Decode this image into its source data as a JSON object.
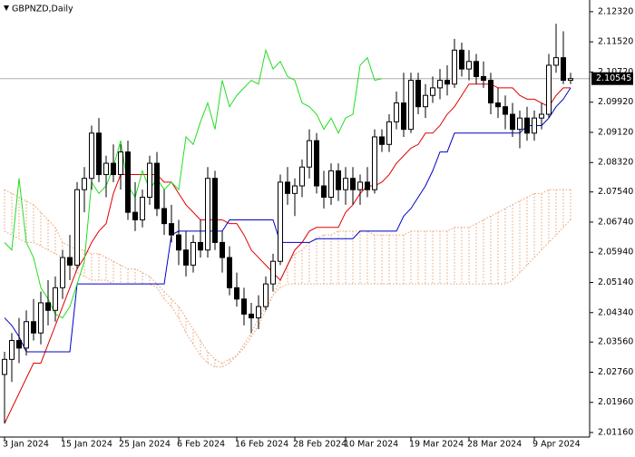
{
  "chart_data": {
    "type": "candlestick",
    "title": "GBPNZD,Daily",
    "categories": [
      "3 Jan 2024",
      null,
      null,
      null,
      null,
      null,
      null,
      null,
      "15 Jan 2024",
      null,
      null,
      null,
      null,
      null,
      null,
      null,
      "25 Jan 2024",
      null,
      null,
      null,
      null,
      null,
      null,
      null,
      "6 Feb 2024",
      null,
      null,
      null,
      null,
      null,
      null,
      null,
      "16 Feb 2024",
      null,
      null,
      null,
      null,
      null,
      null,
      null,
      "28 Feb 2024",
      null,
      null,
      null,
      null,
      null,
      null,
      "10 Mar 2024",
      null,
      null,
      null,
      null,
      null,
      null,
      null,
      null,
      "19 Mar 2024",
      null,
      null,
      null,
      null,
      null,
      null,
      null,
      "28 Mar 2024",
      null,
      null,
      null,
      null,
      null,
      null,
      null,
      null,
      "9 Apr 2024",
      null,
      null,
      null,
      null,
      null
    ],
    "open": [
      2.027,
      2.031,
      2.036,
      2.034,
      2.041,
      2.038,
      2.046,
      2.044,
      2.05,
      2.058,
      2.056,
      2.076,
      2.079,
      2.091,
      2.08,
      2.083,
      2.08,
      2.086,
      2.07,
      2.068,
      2.074,
      2.083,
      2.071,
      2.067,
      2.064,
      2.06,
      2.056,
      2.062,
      2.06,
      2.079,
      2.062,
      2.058,
      2.05,
      2.047,
      2.043,
      2.042,
      2.045,
      2.051,
      2.057,
      2.078,
      2.075,
      2.077,
      2.082,
      2.089,
      2.077,
      2.074,
      2.081,
      2.076,
      2.079,
      2.076,
      2.078,
      2.076,
      2.09,
      2.088,
      2.094,
      2.099,
      2.092,
      2.105,
      2.098,
      2.101,
      2.103,
      2.105,
      2.104,
      2.113,
      2.108,
      2.11,
      2.106,
      2.105,
      2.099,
      2.098,
      2.096,
      2.092,
      2.095,
      2.091,
      2.095,
      2.096,
      2.109,
      2.111,
      2.105
    ],
    "high": [
      2.033,
      2.038,
      2.042,
      2.044,
      2.047,
      2.049,
      2.052,
      2.053,
      2.06,
      2.064,
      2.078,
      2.082,
      2.093,
      2.095,
      2.085,
      2.088,
      2.088,
      2.089,
      2.078,
      2.076,
      2.085,
      2.086,
      2.076,
      2.072,
      2.068,
      2.065,
      2.064,
      2.068,
      2.082,
      2.081,
      2.065,
      2.061,
      2.054,
      2.05,
      2.046,
      2.048,
      2.053,
      2.059,
      2.08,
      2.082,
      2.079,
      2.084,
      2.092,
      2.091,
      2.081,
      2.083,
      2.083,
      2.082,
      2.082,
      2.08,
      2.082,
      2.092,
      2.092,
      2.096,
      2.102,
      2.107,
      2.107,
      2.107,
      2.104,
      2.106,
      2.108,
      2.109,
      2.116,
      2.115,
      2.113,
      2.112,
      2.11,
      2.107,
      2.103,
      2.101,
      2.099,
      2.097,
      2.098,
      2.097,
      2.099,
      2.112,
      2.12,
      2.118,
      2.107
    ],
    "low": [
      2.014,
      2.025,
      2.03,
      2.032,
      2.036,
      2.035,
      2.04,
      2.041,
      2.047,
      2.052,
      2.055,
      2.07,
      2.076,
      2.078,
      2.074,
      2.078,
      2.076,
      2.068,
      2.065,
      2.066,
      2.072,
      2.069,
      2.064,
      2.062,
      2.056,
      2.053,
      2.054,
      2.058,
      2.058,
      2.06,
      2.054,
      2.048,
      2.045,
      2.04,
      2.038,
      2.039,
      2.044,
      2.049,
      2.056,
      2.072,
      2.069,
      2.074,
      2.079,
      2.075,
      2.071,
      2.072,
      2.073,
      2.072,
      2.072,
      2.072,
      2.074,
      2.075,
      2.086,
      2.086,
      2.092,
      2.09,
      2.091,
      2.096,
      2.095,
      2.099,
      2.1,
      2.101,
      2.103,
      2.106,
      2.105,
      2.104,
      2.103,
      2.096,
      2.095,
      2.092,
      2.09,
      2.087,
      2.089,
      2.089,
      2.092,
      2.095,
      2.107,
      2.104,
      2.104
    ],
    "close": [
      2.031,
      2.036,
      2.034,
      2.041,
      2.038,
      2.046,
      2.044,
      2.05,
      2.058,
      2.056,
      2.076,
      2.079,
      2.091,
      2.08,
      2.083,
      2.08,
      2.086,
      2.07,
      2.068,
      2.074,
      2.083,
      2.071,
      2.067,
      2.064,
      2.06,
      2.056,
      2.062,
      2.06,
      2.079,
      2.062,
      2.058,
      2.05,
      2.047,
      2.043,
      2.042,
      2.045,
      2.051,
      2.057,
      2.078,
      2.075,
      2.077,
      2.082,
      2.089,
      2.077,
      2.074,
      2.081,
      2.076,
      2.079,
      2.076,
      2.078,
      2.076,
      2.09,
      2.088,
      2.094,
      2.099,
      2.092,
      2.105,
      2.098,
      2.101,
      2.103,
      2.105,
      2.104,
      2.113,
      2.108,
      2.11,
      2.106,
      2.105,
      2.099,
      2.098,
      2.096,
      2.092,
      2.095,
      2.091,
      2.095,
      2.096,
      2.109,
      2.111,
      2.105,
      2.10545
    ],
    "up_color": "#ffffff",
    "down_color": "#000000",
    "lines": [
      {
        "color": "#e00000",
        "values": [
          2.014,
          2.018,
          2.022,
          2.026,
          2.03,
          2.03,
          2.035,
          2.04,
          2.045,
          2.05,
          2.055,
          2.058,
          2.062,
          2.065,
          2.067,
          2.075,
          2.08,
          2.08,
          2.08,
          2.08,
          2.08,
          2.08,
          2.078,
          2.078,
          2.075,
          2.072,
          2.07,
          2.068,
          2.068,
          2.068,
          2.068,
          2.067,
          2.067,
          2.064,
          2.06,
          2.058,
          2.056,
          2.054,
          2.052,
          2.056,
          2.06,
          2.062,
          2.065,
          2.066,
          2.066,
          2.066,
          2.066,
          2.07,
          2.072,
          2.075,
          2.077,
          2.077,
          2.078,
          2.08,
          2.083,
          2.085,
          2.087,
          2.088,
          2.091,
          2.091,
          2.093,
          2.096,
          2.098,
          2.101,
          2.104,
          2.104,
          2.104,
          2.104,
          2.103,
          2.103,
          2.103,
          2.101,
          2.1,
          2.1,
          2.099,
          2.098,
          2.101,
          2.103,
          2.103
        ]
      },
      {
        "color": "#0000c8",
        "values": [
          2.042,
          2.04,
          2.037,
          2.033,
          2.033,
          2.033,
          2.033,
          2.033,
          2.033,
          2.033,
          2.051,
          2.051,
          2.051,
          2.051,
          2.051,
          2.051,
          2.051,
          2.051,
          2.051,
          2.051,
          2.051,
          2.051,
          2.051,
          2.064,
          2.065,
          2.065,
          2.065,
          2.065,
          2.065,
          2.065,
          2.065,
          2.068,
          2.068,
          2.068,
          2.068,
          2.068,
          2.068,
          2.068,
          2.062,
          2.062,
          2.062,
          2.062,
          2.062,
          2.063,
          2.063,
          2.063,
          2.063,
          2.063,
          2.063,
          2.065,
          2.065,
          2.065,
          2.065,
          2.065,
          2.065,
          2.069,
          2.071,
          2.074,
          2.077,
          2.081,
          2.086,
          2.086,
          2.091,
          2.091,
          2.091,
          2.091,
          2.091,
          2.091,
          2.091,
          2.091,
          2.091,
          2.091,
          2.093,
          2.093,
          2.093,
          2.095,
          2.098,
          2.1,
          2.103
        ]
      },
      {
        "color": "#22dd22",
        "values": [
          2.062,
          2.06,
          2.079,
          2.062,
          2.058,
          2.05,
          2.047,
          2.043,
          2.042,
          2.045,
          2.051,
          2.057,
          2.078,
          2.075,
          2.077,
          2.082,
          2.089,
          2.077,
          2.074,
          2.081,
          2.076,
          2.079,
          2.076,
          2.078,
          2.076,
          2.09,
          2.088,
          2.094,
          2.099,
          2.092,
          2.105,
          2.098,
          2.101,
          2.103,
          2.105,
          2.104,
          2.113,
          2.108,
          2.11,
          2.106,
          2.105,
          2.099,
          2.098,
          2.096,
          2.092,
          2.095,
          2.091,
          2.095,
          2.096,
          2.109,
          2.111,
          2.105,
          2.10545,
          null,
          null,
          null,
          null,
          null,
          null,
          null,
          null,
          null,
          null,
          null,
          null,
          null,
          null,
          null,
          null,
          null,
          null,
          null,
          null,
          null,
          null,
          null,
          null
        ]
      }
    ],
    "cloud": {
      "color": "#e8a070",
      "span_a": [
        2.076,
        2.075,
        2.074,
        2.073,
        2.072,
        2.07,
        2.068,
        2.066,
        2.062,
        2.061,
        2.06,
        2.06,
        2.059,
        2.059,
        2.058,
        2.057,
        2.056,
        2.055,
        2.055,
        2.054,
        2.053,
        2.051,
        2.049,
        2.047,
        2.045,
        2.042,
        2.039,
        2.036,
        2.033,
        2.031,
        2.03,
        2.031,
        2.032,
        2.034,
        2.037,
        2.04,
        2.044,
        2.048,
        2.052,
        2.056,
        2.059,
        2.06,
        2.062,
        2.063,
        2.064,
        2.064,
        2.065,
        2.065,
        2.065,
        2.065,
        2.065,
        2.064,
        2.064,
        2.064,
        2.064,
        2.064,
        2.065,
        2.065,
        2.065,
        2.065,
        2.065,
        2.065,
        2.066,
        2.066,
        2.066,
        2.067,
        2.068,
        2.069,
        2.07,
        2.071,
        2.072,
        2.073,
        2.074,
        2.075,
        2.075,
        2.076,
        2.076,
        2.076,
        2.076
      ],
      "span_b": [
        2.065,
        2.064,
        2.063,
        2.062,
        2.062,
        2.061,
        2.06,
        2.059,
        2.058,
        2.056,
        2.054,
        2.053,
        2.052,
        2.052,
        2.052,
        2.051,
        2.051,
        2.051,
        2.051,
        2.051,
        2.051,
        2.05,
        2.047,
        2.045,
        2.042,
        2.038,
        2.035,
        2.032,
        2.03,
        2.029,
        2.029,
        2.03,
        2.032,
        2.035,
        2.038,
        2.042,
        2.045,
        2.048,
        2.05,
        2.051,
        2.051,
        2.051,
        2.051,
        2.051,
        2.051,
        2.051,
        2.051,
        2.051,
        2.051,
        2.051,
        2.051,
        2.051,
        2.051,
        2.051,
        2.051,
        2.051,
        2.051,
        2.051,
        2.051,
        2.051,
        2.051,
        2.051,
        2.051,
        2.051,
        2.051,
        2.051,
        2.051,
        2.051,
        2.051,
        2.051,
        2.052,
        2.054,
        2.056,
        2.058,
        2.06,
        2.062,
        2.064,
        2.066,
        2.068
      ]
    },
    "last_price": 2.10545,
    "ylim": [
      2.0104,
      2.1263
    ],
    "yticks": [
      {
        "value": 2.1232,
        "label": "2.12320"
      },
      {
        "value": 2.1152,
        "label": "2.11520"
      },
      {
        "value": 2.1072,
        "label": "2.10720"
      },
      {
        "value": 2.0992,
        "label": "2.09920"
      },
      {
        "value": 2.0912,
        "label": "2.09120"
      },
      {
        "value": 2.0832,
        "label": "2.08320"
      },
      {
        "value": 2.0754,
        "label": "2.07540"
      },
      {
        "value": 2.0674,
        "label": "2.06740"
      },
      {
        "value": 2.0594,
        "label": "2.05940"
      },
      {
        "value": 2.0514,
        "label": "2.05140"
      },
      {
        "value": 2.0434,
        "label": "2.04340"
      },
      {
        "value": 2.0356,
        "label": "2.03560"
      },
      {
        "value": 2.0276,
        "label": "2.02760"
      },
      {
        "value": 2.0196,
        "label": "2.01960"
      },
      {
        "value": 2.0116,
        "label": "2.01160"
      }
    ],
    "grid": false
  }
}
